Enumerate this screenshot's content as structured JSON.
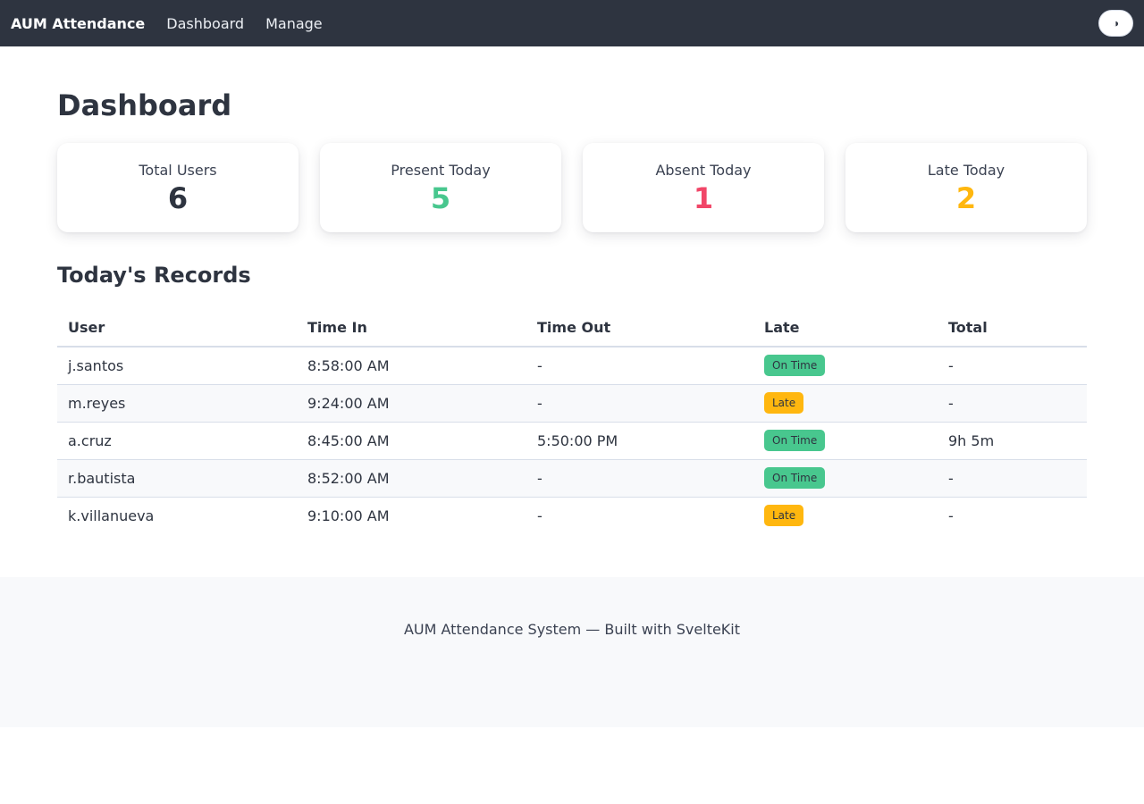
{
  "navbar": {
    "brand": "AUM Attendance",
    "links": [
      "Dashboard",
      "Manage"
    ],
    "theme_toggle_icon": "theme-toggle-icon"
  },
  "page": {
    "title": "Dashboard"
  },
  "stats": [
    {
      "label": "Total Users",
      "value": "6",
      "color": "#2e3440"
    },
    {
      "label": "Present Today",
      "value": "5",
      "color": "#48c78e"
    },
    {
      "label": "Absent Today",
      "value": "1",
      "color": "#f14668"
    },
    {
      "label": "Late Today",
      "value": "2",
      "color": "#ffb70f"
    }
  ],
  "records": {
    "title": "Today's Records",
    "columns": [
      "User",
      "Time In",
      "Time Out",
      "Late",
      "Total"
    ],
    "rows": [
      {
        "user": "j.santos",
        "time_in": "8:58:00 AM",
        "time_out": "-",
        "late": "On Time",
        "late_color": "#48c78e",
        "total": "-"
      },
      {
        "user": "m.reyes",
        "time_in": "9:24:00 AM",
        "time_out": "-",
        "late": "Late",
        "late_color": "#ffb70f",
        "total": "-"
      },
      {
        "user": "a.cruz",
        "time_in": "8:45:00 AM",
        "time_out": "5:50:00 PM",
        "late": "On Time",
        "late_color": "#48c78e",
        "total": "9h 5m"
      },
      {
        "user": "r.bautista",
        "time_in": "8:52:00 AM",
        "time_out": "-",
        "late": "On Time",
        "late_color": "#48c78e",
        "total": "-"
      },
      {
        "user": "k.villanueva",
        "time_in": "9:10:00 AM",
        "time_out": "-",
        "late": "Late",
        "late_color": "#ffb70f",
        "total": "-"
      }
    ]
  },
  "footer": {
    "text": "AUM Attendance System — Built with SvelteKit"
  }
}
